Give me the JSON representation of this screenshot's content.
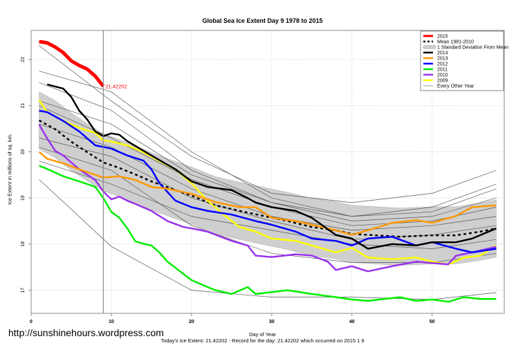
{
  "chart_data": {
    "type": "line",
    "title": "Global Sea Ice Extent Day 9 1978 to 2015",
    "xlabel": "Day of Year",
    "ylabel": "Ice Extent in millions of sq. km.",
    "xlim": [
      0,
      59
    ],
    "ylim": [
      16.5,
      22.63
    ],
    "xticks": [
      0,
      10,
      20,
      30,
      40,
      50
    ],
    "yticks": [
      17,
      18,
      19,
      20,
      21,
      22
    ],
    "grid": true,
    "legend_position": "top-right",
    "current_day": 9,
    "current_label": "21.42202",
    "legend": [
      "2015",
      "Mean 1981-2010",
      "1 Standard Deviation From Mean",
      "2014",
      "2013",
      "2012",
      "2011",
      "2010",
      "2009",
      "Every Other Year"
    ],
    "mean": {
      "name": "Mean 1981-2010",
      "points": [
        [
          1,
          20.68
        ],
        [
          3,
          20.49
        ],
        [
          5,
          20.22
        ],
        [
          7,
          19.99
        ],
        [
          9,
          19.77
        ],
        [
          11,
          19.65
        ],
        [
          13,
          19.51
        ],
        [
          15,
          19.36
        ],
        [
          18,
          19.17
        ],
        [
          20,
          19.05
        ],
        [
          23,
          18.84
        ],
        [
          26,
          18.72
        ],
        [
          29,
          18.61
        ],
        [
          32,
          18.5
        ],
        [
          35,
          18.37
        ],
        [
          38,
          18.3
        ],
        [
          40,
          18.22
        ],
        [
          43,
          18.19
        ],
        [
          46,
          18.16
        ],
        [
          50,
          18.19
        ],
        [
          53,
          18.19
        ],
        [
          56,
          18.27
        ],
        [
          58,
          18.34
        ]
      ],
      "sd": 0.62
    },
    "series": [
      {
        "name": "2015",
        "color": "#ff0000",
        "points": [
          [
            1,
            22.39
          ],
          [
            2,
            22.36
          ],
          [
            3,
            22.27
          ],
          [
            4,
            22.15
          ],
          [
            5,
            21.97
          ],
          [
            6,
            21.87
          ],
          [
            7,
            21.79
          ],
          [
            8,
            21.64
          ],
          [
            9,
            21.42
          ]
        ]
      },
      {
        "name": "2014",
        "color": "#000000",
        "points": [
          [
            2,
            21.46
          ],
          [
            4,
            21.37
          ],
          [
            5,
            21.19
          ],
          [
            6,
            20.89
          ],
          [
            7,
            20.7
          ],
          [
            8,
            20.44
          ],
          [
            9,
            20.34
          ],
          [
            10,
            20.4
          ],
          [
            11,
            20.37
          ],
          [
            12,
            20.23
          ],
          [
            15,
            19.92
          ],
          [
            18,
            19.62
          ],
          [
            20,
            19.36
          ],
          [
            22,
            19.24
          ],
          [
            25,
            19.17
          ],
          [
            27,
            19.0
          ],
          [
            28,
            18.9
          ],
          [
            30,
            18.8
          ],
          [
            33,
            18.72
          ],
          [
            35,
            18.57
          ],
          [
            38,
            18.2
          ],
          [
            40,
            18.12
          ],
          [
            42,
            17.9
          ],
          [
            45,
            18.0
          ],
          [
            48,
            17.97
          ],
          [
            50,
            18.04
          ],
          [
            53,
            18.04
          ],
          [
            55,
            18.12
          ],
          [
            58,
            18.34
          ]
        ]
      },
      {
        "name": "2013",
        "color": "#ff9900",
        "points": [
          [
            1,
            20.0
          ],
          [
            2,
            19.85
          ],
          [
            4,
            19.75
          ],
          [
            6,
            19.62
          ],
          [
            8,
            19.5
          ],
          [
            9,
            19.44
          ],
          [
            11,
            19.47
          ],
          [
            13,
            19.39
          ],
          [
            15,
            19.24
          ],
          [
            17,
            19.2
          ],
          [
            20,
            19.09
          ],
          [
            23,
            18.91
          ],
          [
            26,
            18.8
          ],
          [
            28,
            18.8
          ],
          [
            30,
            18.57
          ],
          [
            33,
            18.5
          ],
          [
            35,
            18.42
          ],
          [
            38,
            18.3
          ],
          [
            40,
            18.2
          ],
          [
            42,
            18.3
          ],
          [
            45,
            18.46
          ],
          [
            48,
            18.52
          ],
          [
            50,
            18.46
          ],
          [
            53,
            18.61
          ],
          [
            55,
            18.8
          ],
          [
            58,
            18.84
          ]
        ]
      },
      {
        "name": "2012",
        "color": "#0000ff",
        "points": [
          [
            1,
            20.89
          ],
          [
            2,
            20.86
          ],
          [
            4,
            20.67
          ],
          [
            6,
            20.44
          ],
          [
            8,
            20.14
          ],
          [
            10,
            20.07
          ],
          [
            12,
            19.92
          ],
          [
            14,
            19.81
          ],
          [
            15,
            19.62
          ],
          [
            16,
            19.32
          ],
          [
            18,
            18.94
          ],
          [
            20,
            18.8
          ],
          [
            22,
            18.72
          ],
          [
            25,
            18.64
          ],
          [
            28,
            18.5
          ],
          [
            30,
            18.42
          ],
          [
            33,
            18.27
          ],
          [
            35,
            18.12
          ],
          [
            38,
            18.07
          ],
          [
            40,
            17.97
          ],
          [
            42,
            18.12
          ],
          [
            45,
            18.16
          ],
          [
            48,
            17.97
          ],
          [
            50,
            18.04
          ],
          [
            53,
            17.9
          ],
          [
            55,
            17.82
          ],
          [
            58,
            17.9
          ]
        ]
      },
      {
        "name": "2011",
        "color": "#00ee00",
        "points": [
          [
            1,
            19.7
          ],
          [
            2,
            19.63
          ],
          [
            4,
            19.47
          ],
          [
            6,
            19.36
          ],
          [
            8,
            19.24
          ],
          [
            9,
            19.0
          ],
          [
            10,
            18.7
          ],
          [
            11,
            18.57
          ],
          [
            12,
            18.34
          ],
          [
            13,
            18.06
          ],
          [
            14,
            18.01
          ],
          [
            15,
            17.97
          ],
          [
            16,
            17.82
          ],
          [
            17,
            17.62
          ],
          [
            20,
            17.22
          ],
          [
            22,
            17.07
          ],
          [
            23,
            17.0
          ],
          [
            25,
            16.92
          ],
          [
            27,
            17.07
          ],
          [
            28,
            16.92
          ],
          [
            30,
            16.96
          ],
          [
            32,
            17.0
          ],
          [
            35,
            16.92
          ],
          [
            38,
            16.85
          ],
          [
            40,
            16.8
          ],
          [
            42,
            16.77
          ],
          [
            44,
            16.81
          ],
          [
            46,
            16.85
          ],
          [
            48,
            16.77
          ],
          [
            50,
            16.8
          ],
          [
            52,
            16.75
          ],
          [
            54,
            16.85
          ],
          [
            56,
            16.81
          ],
          [
            58,
            16.81
          ]
        ]
      },
      {
        "name": "2010",
        "color": "#9933ee",
        "points": [
          [
            1,
            20.59
          ],
          [
            2,
            20.29
          ],
          [
            3,
            20.02
          ],
          [
            4,
            19.92
          ],
          [
            6,
            19.62
          ],
          [
            8,
            19.39
          ],
          [
            9,
            19.14
          ],
          [
            10,
            18.97
          ],
          [
            11,
            19.03
          ],
          [
            12,
            18.94
          ],
          [
            13,
            18.87
          ],
          [
            15,
            18.72
          ],
          [
            17,
            18.5
          ],
          [
            19,
            18.37
          ],
          [
            20,
            18.34
          ],
          [
            22,
            18.27
          ],
          [
            25,
            18.07
          ],
          [
            27,
            17.97
          ],
          [
            28,
            17.75
          ],
          [
            30,
            17.72
          ],
          [
            33,
            17.78
          ],
          [
            35,
            17.75
          ],
          [
            37,
            17.62
          ],
          [
            38,
            17.44
          ],
          [
            40,
            17.52
          ],
          [
            42,
            17.41
          ],
          [
            45,
            17.52
          ],
          [
            48,
            17.62
          ],
          [
            50,
            17.59
          ],
          [
            52,
            17.56
          ],
          [
            53,
            17.75
          ],
          [
            55,
            17.82
          ],
          [
            58,
            17.94
          ]
        ]
      },
      {
        "name": "2009",
        "color": "#ffff00",
        "points": [
          [
            1,
            21.12
          ],
          [
            2,
            20.86
          ],
          [
            4,
            20.67
          ],
          [
            6,
            20.52
          ],
          [
            8,
            20.41
          ],
          [
            9,
            20.25
          ],
          [
            10,
            20.22
          ],
          [
            12,
            20.14
          ],
          [
            14,
            19.99
          ],
          [
            16,
            19.8
          ],
          [
            18,
            19.62
          ],
          [
            20,
            19.32
          ],
          [
            22,
            18.94
          ],
          [
            24,
            18.64
          ],
          [
            26,
            18.37
          ],
          [
            28,
            18.27
          ],
          [
            30,
            18.12
          ],
          [
            33,
            18.07
          ],
          [
            35,
            17.97
          ],
          [
            38,
            17.82
          ],
          [
            40,
            17.92
          ],
          [
            42,
            17.71
          ],
          [
            45,
            17.67
          ],
          [
            48,
            17.71
          ],
          [
            50,
            17.62
          ],
          [
            52,
            17.56
          ],
          [
            54,
            17.71
          ],
          [
            56,
            17.75
          ],
          [
            58,
            17.97
          ]
        ]
      }
    ],
    "other_years": {
      "name": "Every Other Year",
      "color": "#555555",
      "points": [
        [
          [
            1,
            22.3
          ],
          [
            10,
            21.1
          ],
          [
            20,
            19.9
          ],
          [
            30,
            19.1
          ],
          [
            40,
            18.9
          ],
          [
            50,
            19.1
          ],
          [
            58,
            19.6
          ]
        ],
        [
          [
            1,
            21.75
          ],
          [
            10,
            21.3
          ],
          [
            20,
            20.0
          ],
          [
            30,
            19.0
          ],
          [
            40,
            18.6
          ],
          [
            50,
            18.8
          ],
          [
            58,
            19.3
          ]
        ],
        [
          [
            1,
            21.5
          ],
          [
            10,
            20.9
          ],
          [
            20,
            19.6
          ],
          [
            30,
            18.9
          ],
          [
            40,
            18.5
          ],
          [
            50,
            18.6
          ],
          [
            58,
            19.0
          ]
        ],
        [
          [
            1,
            21.0
          ],
          [
            10,
            20.3
          ],
          [
            20,
            19.4
          ],
          [
            30,
            18.8
          ],
          [
            40,
            18.4
          ],
          [
            50,
            18.5
          ],
          [
            58,
            18.8
          ]
        ],
        [
          [
            1,
            20.6
          ],
          [
            10,
            20.1
          ],
          [
            20,
            19.2
          ],
          [
            30,
            18.6
          ],
          [
            40,
            18.3
          ],
          [
            50,
            18.4
          ],
          [
            58,
            18.6
          ]
        ],
        [
          [
            1,
            20.3
          ],
          [
            10,
            19.9
          ],
          [
            20,
            19.0
          ],
          [
            30,
            18.5
          ],
          [
            40,
            18.1
          ],
          [
            50,
            18.2
          ],
          [
            58,
            18.4
          ]
        ],
        [
          [
            1,
            19.8
          ],
          [
            10,
            19.3
          ],
          [
            20,
            18.6
          ],
          [
            30,
            18.3
          ],
          [
            40,
            18.0
          ],
          [
            50,
            17.9
          ],
          [
            58,
            18.1
          ]
        ],
        [
          [
            1,
            19.4
          ],
          [
            10,
            17.95
          ],
          [
            20,
            17.0
          ],
          [
            30,
            16.85
          ],
          [
            40,
            16.85
          ],
          [
            50,
            16.8
          ],
          [
            58,
            16.95
          ]
        ],
        [
          [
            1,
            20.1
          ],
          [
            10,
            19.6
          ],
          [
            20,
            18.4
          ],
          [
            30,
            17.8
          ],
          [
            40,
            17.6
          ],
          [
            50,
            17.6
          ],
          [
            58,
            17.8
          ]
        ],
        [
          [
            1,
            21.1
          ],
          [
            10,
            20.6
          ],
          [
            20,
            19.5
          ],
          [
            30,
            18.9
          ],
          [
            40,
            18.6
          ],
          [
            50,
            18.7
          ],
          [
            58,
            19.2
          ]
        ]
      ]
    }
  },
  "site": "http://sunshinehours.wordpress.com",
  "footer": "Today's Ice Extent: 21.42202  - Record for the day: 21.42202 which occurred on 2015 1 9"
}
